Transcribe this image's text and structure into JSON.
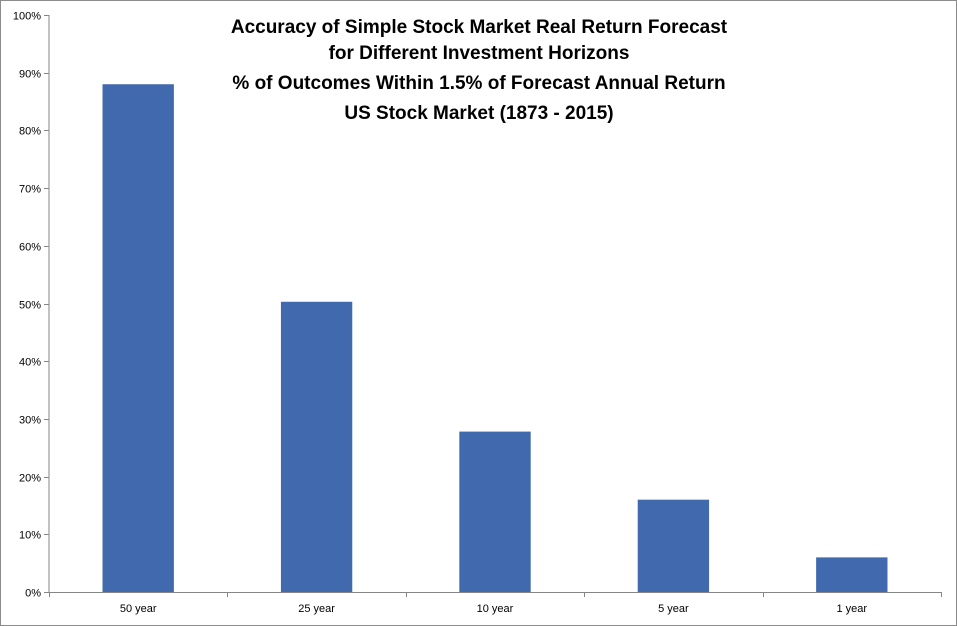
{
  "chart_data": {
    "type": "bar",
    "title_lines": [
      "Accuracy of Simple Stock Market Real Return Forecast",
      "for Different Investment Horizons",
      "% of Outcomes Within 1.5% of Forecast Annual Return",
      "US Stock Market (1873 - 2015)"
    ],
    "categories": [
      "50 year",
      "25 year",
      "10 year",
      "5 year",
      "1 year"
    ],
    "values": [
      88,
      50.3,
      27.8,
      16,
      6
    ],
    "y_ticks": [
      "0%",
      "10%",
      "20%",
      "30%",
      "40%",
      "50%",
      "60%",
      "70%",
      "80%",
      "90%",
      "100%"
    ],
    "ylim": [
      0,
      100
    ],
    "y_unit": "%",
    "grid": false,
    "legend": "none",
    "bar_color": "#4169AE",
    "axis_color": "#868686"
  }
}
